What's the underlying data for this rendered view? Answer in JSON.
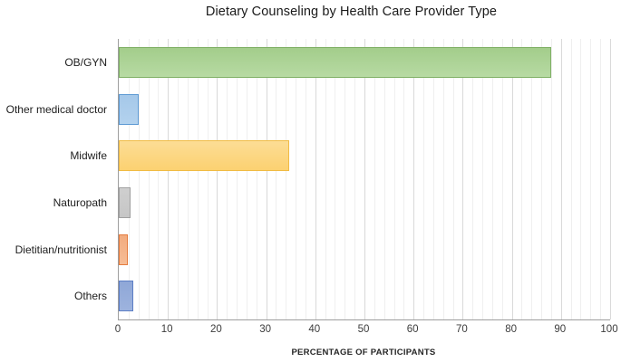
{
  "chart_data": {
    "type": "bar",
    "orientation": "horizontal",
    "title": "Dietary Counseling by Health Care Provider Type",
    "xlabel": "PERCENTAGE OF PARTICIPANTS",
    "ylabel": "",
    "categories": [
      "OB/GYN",
      "Other medical doctor",
      "Midwife",
      "Naturopath",
      "Dietitian/nutritionist",
      "Others"
    ],
    "values": [
      88,
      4,
      34.6,
      2.4,
      1.9,
      2.9
    ],
    "xlim": [
      0,
      100
    ],
    "x_ticks": [
      0,
      10,
      20,
      30,
      40,
      50,
      60,
      70,
      80,
      90,
      100
    ],
    "minor_grid_step": 2,
    "major_grid_step": 10,
    "grid": "vertical",
    "legend": "none",
    "bar_colors": [
      {
        "name": "green",
        "fill_top": "#a3cd8b",
        "fill_bottom": "#b7daa3",
        "border": "#7fb065"
      },
      {
        "name": "blue",
        "fill_top": "#a5c8e9",
        "fill_bottom": "#b3d2ee",
        "border": "#5f9bd4"
      },
      {
        "name": "yellow",
        "fill_top": "#fcdd95",
        "fill_bottom": "#fcd171",
        "border": "#f0bb45"
      },
      {
        "name": "gray",
        "fill_top": "#cfcfcf",
        "fill_bottom": "#c6c6c6",
        "border": "#a0a0a0"
      },
      {
        "name": "orange",
        "fill_top": "#f2ab7e",
        "fill_bottom": "#f6bc95",
        "border": "#e47c3f"
      },
      {
        "name": "purple-blue",
        "fill_top": "#8fa7d7",
        "fill_bottom": "#9db3de",
        "border": "#5c7ec5"
      }
    ],
    "axis_color": "#9e9e9e",
    "minor_grid_color": "#efefef",
    "major_grid_color": "#d9d9d9"
  }
}
